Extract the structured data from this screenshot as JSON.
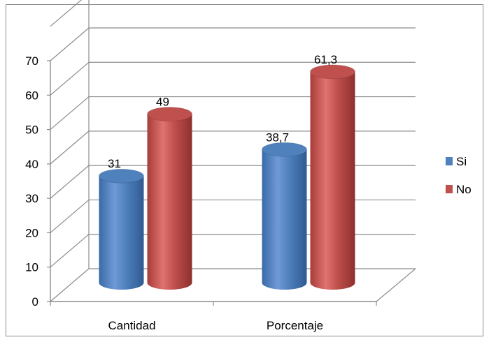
{
  "chart_data": {
    "type": "bar",
    "style": "3d-cylinder",
    "categories": [
      "Cantidad",
      "Porcentaje"
    ],
    "series": [
      {
        "name": "Si",
        "values": [
          31,
          38.7
        ],
        "labels": [
          "31",
          "38,7"
        ]
      },
      {
        "name": "No",
        "values": [
          49,
          61.3
        ],
        "labels": [
          "49",
          "61,3"
        ]
      }
    ],
    "colors": {
      "Si": "#4f81bd",
      "No": "#c0504d"
    },
    "ylim": [
      0,
      80
    ],
    "yticks": [
      "0",
      "10",
      "20",
      "30",
      "40",
      "50",
      "60",
      "70"
    ],
    "legend_position": "right",
    "grid": true
  }
}
